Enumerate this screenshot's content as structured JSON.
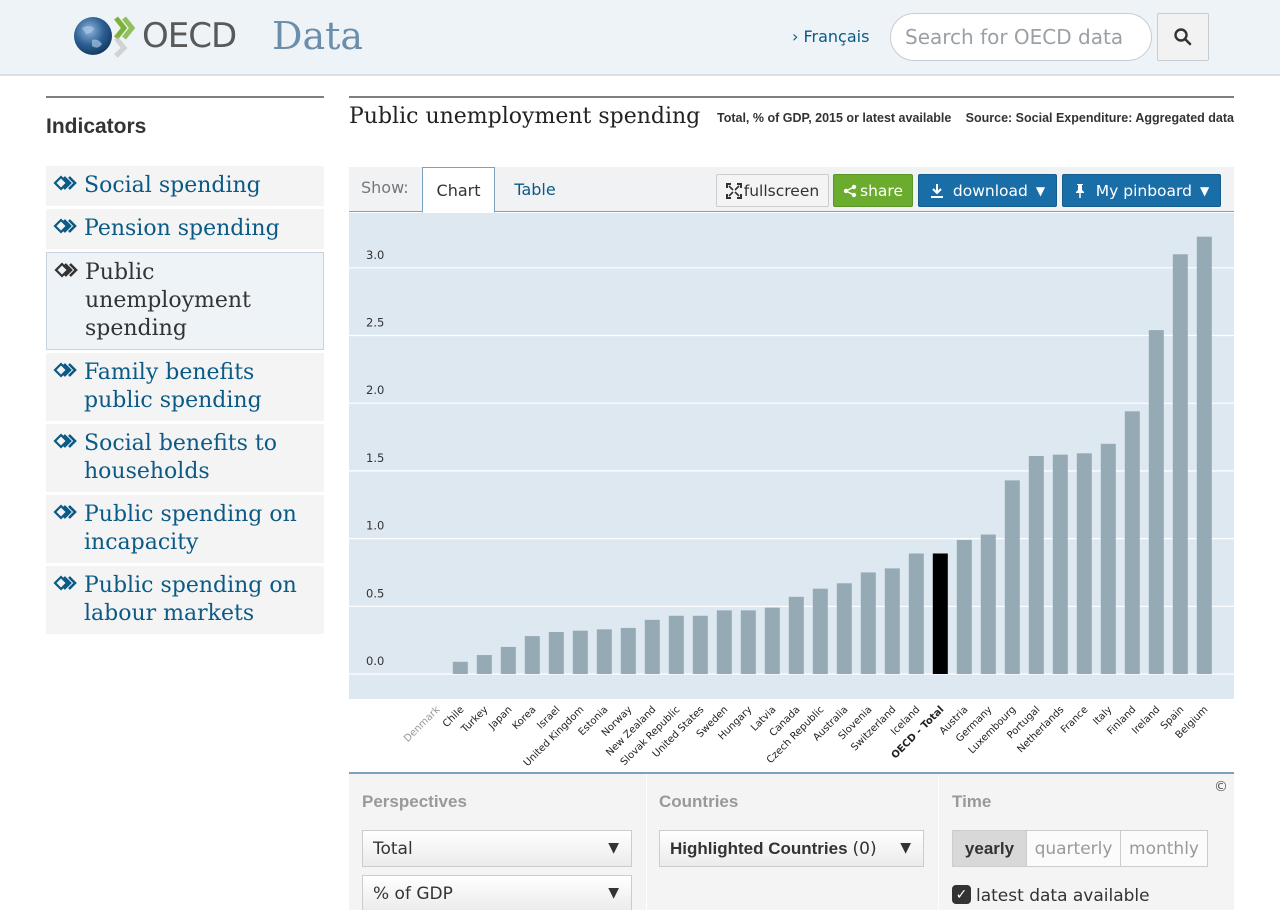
{
  "header": {
    "logo_text": "OECD",
    "title": "Data",
    "lang_link": "› Français",
    "search_placeholder": "Search for OECD data"
  },
  "sidebar": {
    "title": "Indicators",
    "items": [
      {
        "label": "Social spending"
      },
      {
        "label": "Pension spending"
      },
      {
        "label": "Public unemployment spending"
      },
      {
        "label": "Family benefits public spending"
      },
      {
        "label": "Social benefits to households"
      },
      {
        "label": "Public spending on incapacity"
      },
      {
        "label": "Public spending on labour markets"
      }
    ]
  },
  "main": {
    "title": "Public unemployment spending",
    "subtitle": "Total, % of GDP, 2015 or latest available",
    "source": "Source: Social Expenditure: Aggregated data",
    "toolbar": {
      "show_label": "Show:",
      "tab_chart": "Chart",
      "tab_table": "Table",
      "fullscreen": "fullscreen",
      "share": "share",
      "download": "download",
      "pinboard": "My pinboard"
    }
  },
  "chart_data": {
    "type": "bar",
    "title": "Public unemployment spending",
    "ylabel": "% of GDP",
    "ylim": [
      0,
      3.25
    ],
    "yticks": [
      "0.0",
      "0.5",
      "1.0",
      "1.5",
      "2.0",
      "2.5",
      "3.0"
    ],
    "grid": true,
    "categories": [
      "Denmark",
      "Chile",
      "Turkey",
      "Japan",
      "Korea",
      "Israel",
      "United Kingdom",
      "Estonia",
      "Norway",
      "New Zealand",
      "Slovak Republic",
      "United States",
      "Sweden",
      "Hungary",
      "Latvia",
      "Canada",
      "Czech Republic",
      "Australia",
      "Slovenia",
      "Switzerland",
      "Iceland",
      "OECD - Total",
      "Austria",
      "Germany",
      "Luxembourg",
      "Portugal",
      "Netherlands",
      "France",
      "Italy",
      "Finland",
      "Ireland",
      "Spain",
      "Belgium"
    ],
    "values": [
      0.0,
      0.09,
      0.14,
      0.2,
      0.28,
      0.31,
      0.32,
      0.33,
      0.34,
      0.4,
      0.43,
      0.43,
      0.47,
      0.47,
      0.49,
      0.57,
      0.63,
      0.67,
      0.75,
      0.78,
      0.89,
      0.89,
      0.99,
      1.03,
      1.43,
      1.61,
      1.62,
      1.63,
      1.7,
      1.94,
      2.54,
      3.1,
      3.23
    ],
    "highlight": "OECD - Total",
    "colors": {
      "bar": "#96aab6",
      "highlight": "#000000",
      "background": "#dde8f0",
      "grid": "#ffffff",
      "muted_label": "#999999"
    }
  },
  "controls": {
    "perspectives_title": "Perspectives",
    "perspective_value": "Total",
    "unit_value": "% of GDP",
    "countries_title": "Countries",
    "countries_value": "Highlighted Countries",
    "countries_count": "(0)",
    "time_title": "Time",
    "time_options": [
      "yearly",
      "quarterly",
      "monthly"
    ],
    "latest_label": "latest data available",
    "copyright": "©"
  }
}
